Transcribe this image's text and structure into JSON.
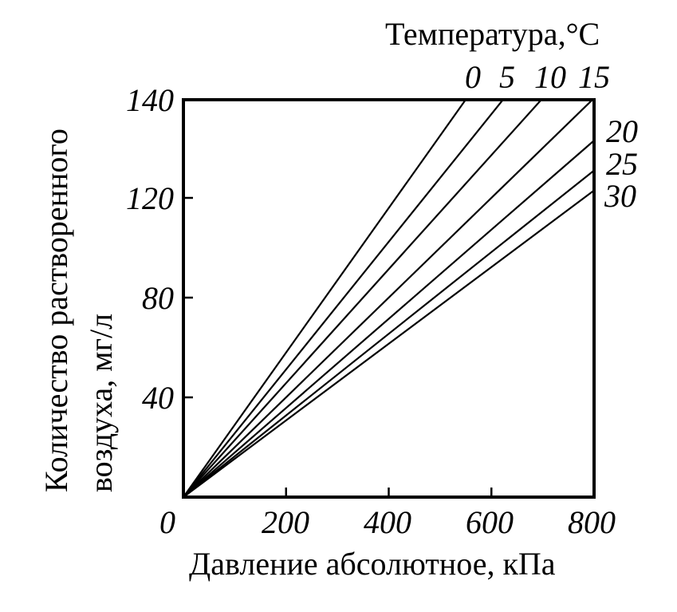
{
  "chart_data": {
    "type": "line",
    "title": "",
    "xlabel": "Давление абсолютное, кПа",
    "ylabel_line1": "Количество растворенного",
    "ylabel_line2": "воздуха, мг/л",
    "legend_title": "Температура,°С",
    "xlim": [
      0,
      800
    ],
    "ylim": [
      0,
      160
    ],
    "x_ticks": [
      "0",
      "200",
      "400",
      "600",
      "800"
    ],
    "x_tick_values": [
      0,
      200,
      400,
      600,
      800
    ],
    "y_ticks": [
      "40",
      "80",
      "120",
      "140"
    ],
    "y_tick_values": [
      40,
      80,
      120,
      140
    ],
    "grid": false,
    "series": [
      {
        "name": "0",
        "x": [
          0,
          552
        ],
        "y": [
          0,
          160
        ]
      },
      {
        "name": "5",
        "x": [
          0,
          625
        ],
        "y": [
          0,
          160
        ]
      },
      {
        "name": "10",
        "x": [
          0,
          700
        ],
        "y": [
          0,
          160
        ]
      },
      {
        "name": "15",
        "x": [
          0,
          800
        ],
        "y": [
          0,
          160
        ]
      },
      {
        "name": "20",
        "x": [
          0,
          800
        ],
        "y": [
          0,
          143
        ]
      },
      {
        "name": "25",
        "x": [
          0,
          800
        ],
        "y": [
          0,
          131
        ]
      },
      {
        "name": "30",
        "x": [
          0,
          800
        ],
        "y": [
          0,
          123
        ]
      }
    ]
  }
}
